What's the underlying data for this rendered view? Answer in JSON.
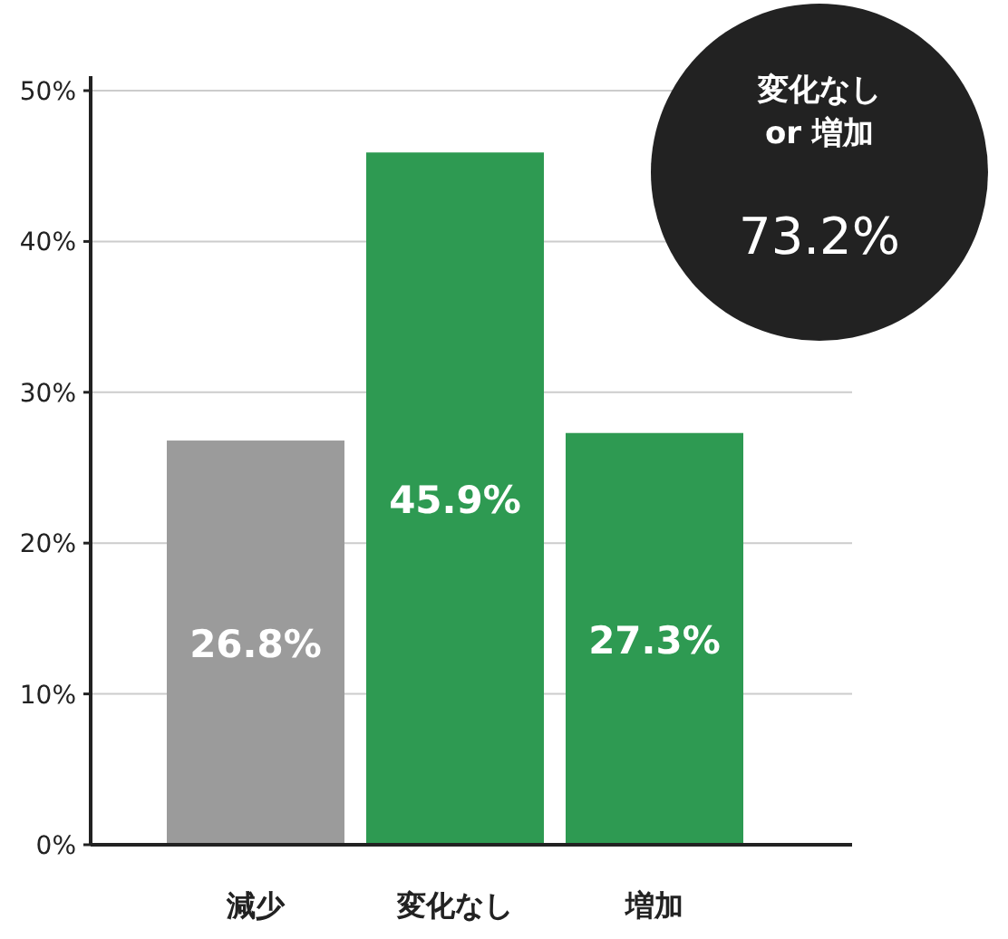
{
  "chart_data": {
    "type": "bar",
    "categories": [
      "減少",
      "変化なし",
      "増加"
    ],
    "values": [
      26.8,
      45.9,
      27.3
    ],
    "colors": [
      "#9b9b9b",
      "#2e9a52",
      "#2e9a52"
    ],
    "value_labels": [
      "26.8%",
      "45.9%",
      "27.3%"
    ],
    "ylim": [
      0,
      50
    ],
    "yticks": [
      {
        "value": 0,
        "label": "0%"
      },
      {
        "value": 10,
        "label": "10%"
      },
      {
        "value": 20,
        "label": "20%"
      },
      {
        "value": 30,
        "label": "30%"
      },
      {
        "value": 40,
        "label": "40%"
      },
      {
        "value": 50,
        "label": "50%"
      }
    ],
    "grid": "y",
    "annotations": [
      "変化なし\nor 増加",
      "73.2%"
    ]
  }
}
